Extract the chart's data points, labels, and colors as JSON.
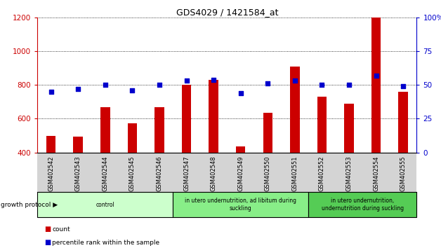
{
  "title": "GDS4029 / 1421584_at",
  "samples": [
    "GSM402542",
    "GSM402543",
    "GSM402544",
    "GSM402545",
    "GSM402546",
    "GSM402547",
    "GSM402548",
    "GSM402549",
    "GSM402550",
    "GSM402551",
    "GSM402552",
    "GSM402553",
    "GSM402554",
    "GSM402555"
  ],
  "counts": [
    500,
    495,
    670,
    575,
    670,
    800,
    830,
    435,
    635,
    910,
    730,
    690,
    1200,
    760
  ],
  "percentiles": [
    45,
    47,
    50,
    46,
    50,
    53,
    54,
    44,
    51,
    53,
    50,
    50,
    57,
    49
  ],
  "ylim_left": [
    400,
    1200
  ],
  "ylim_right": [
    0,
    100
  ],
  "yticks_left": [
    400,
    600,
    800,
    1000,
    1200
  ],
  "yticks_right": [
    0,
    25,
    50,
    75,
    100
  ],
  "bar_color": "#cc0000",
  "dot_color": "#0000cc",
  "bg_color": "#ffffff",
  "axis_color_left": "#cc0000",
  "axis_color_right": "#0000cc",
  "groups": [
    {
      "label": "control",
      "start": 0,
      "end": 5,
      "color": "#ccffcc"
    },
    {
      "label": "in utero undernutrition, ad libitum during\nsuckling",
      "start": 5,
      "end": 10,
      "color": "#88ee88"
    },
    {
      "label": "in utero undernutrition,\nundernutrition during suckling",
      "start": 10,
      "end": 14,
      "color": "#55cc55"
    }
  ],
  "growth_protocol_label": "growth protocol",
  "legend_count_label": "count",
  "legend_percentile_label": "percentile rank within the sample",
  "bar_width": 0.35
}
